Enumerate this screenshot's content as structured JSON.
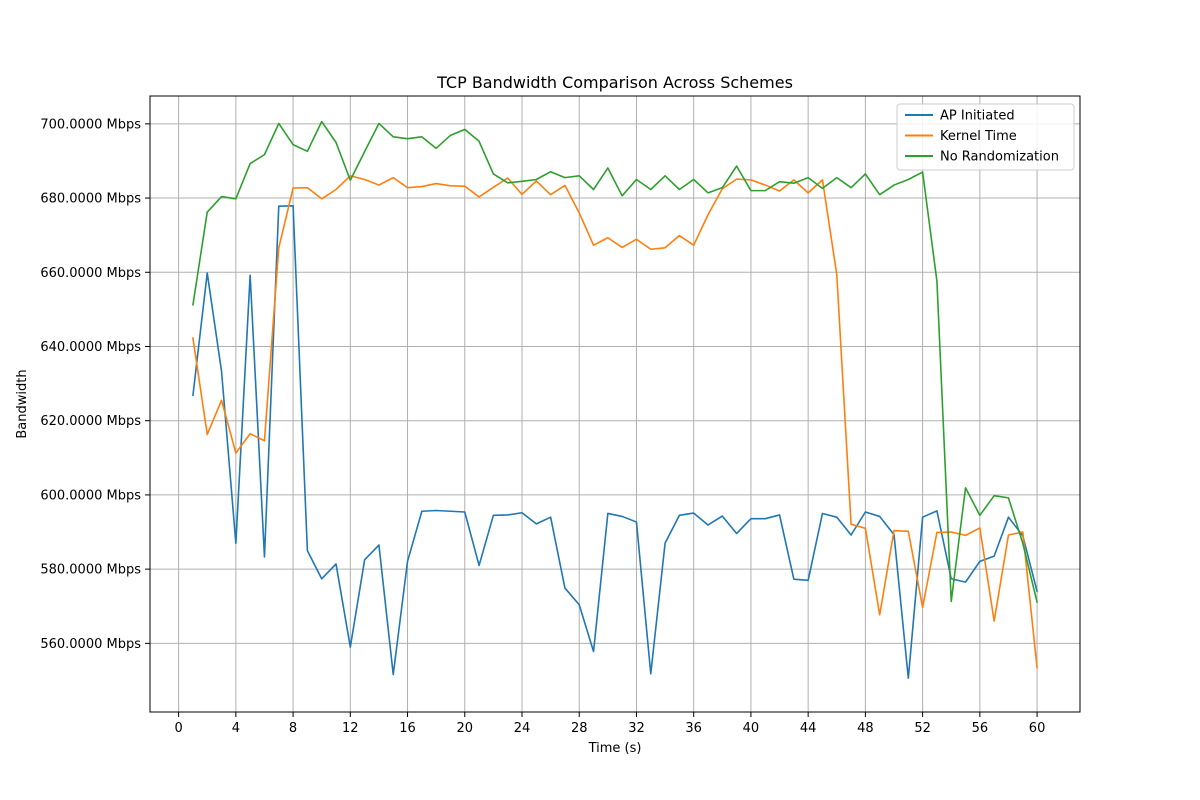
{
  "chart_data": {
    "type": "line",
    "title": "TCP Bandwidth Comparison Across Schemes",
    "xlabel": "Time (s)",
    "ylabel": "Bandwidth",
    "xlim": [
      -2,
      63
    ],
    "ylim": [
      541.5,
      707.5
    ],
    "xticks": [
      0,
      4,
      8,
      12,
      16,
      20,
      24,
      28,
      32,
      36,
      40,
      44,
      48,
      52,
      56,
      60
    ],
    "yticks": [
      560,
      580,
      600,
      620,
      640,
      660,
      680,
      700
    ],
    "ytick_labels": [
      "560.0000 Mbps",
      "580.0000 Mbps",
      "600.0000 Mbps",
      "620.0000 Mbps",
      "640.0000 Mbps",
      "660.0000 Mbps",
      "680.0000 Mbps",
      "700.0000 Mbps"
    ],
    "grid": true,
    "legend_position": "top-right",
    "x": [
      1,
      2,
      3,
      4,
      5,
      6,
      7,
      8,
      9,
      10,
      11,
      12,
      13,
      14,
      15,
      16,
      17,
      18,
      19,
      20,
      21,
      22,
      23,
      24,
      25,
      26,
      27,
      28,
      29,
      30,
      31,
      32,
      33,
      34,
      35,
      36,
      37,
      38,
      39,
      40,
      41,
      42,
      43,
      44,
      45,
      46,
      47,
      48,
      49,
      50,
      51,
      52,
      53,
      54,
      55,
      56,
      57,
      58,
      59,
      60
    ],
    "series": [
      {
        "name": "AP Initiated",
        "color": "#1f77b4",
        "values": [
          626.8,
          659.8,
          633.3,
          587.0,
          659.2,
          583.3,
          677.8,
          677.9,
          585.0,
          577.4,
          581.4,
          559.0,
          582.5,
          586.5,
          551.6,
          582.1,
          595.6,
          595.8,
          595.6,
          595.4,
          581.0,
          594.5,
          594.6,
          595.2,
          592.2,
          594.0,
          574.9,
          570.4,
          557.8,
          595.0,
          594.2,
          592.7,
          551.8,
          587.0,
          594.5,
          595.1,
          591.9,
          594.3,
          589.6,
          593.6,
          593.6,
          594.6,
          577.3,
          577.0,
          595.0,
          594.0,
          589.2,
          595.4,
          594.2,
          589.3,
          550.6,
          594.0,
          595.7,
          577.4,
          576.5,
          582.1,
          583.5,
          594.0,
          589.0,
          574.0
        ]
      },
      {
        "name": "Kernel Time",
        "color": "#ff7f0e",
        "values": [
          642.3,
          616.3,
          625.5,
          611.3,
          616.5,
          614.6,
          666.6,
          682.7,
          682.8,
          679.8,
          682.3,
          686.0,
          685.0,
          683.5,
          685.5,
          682.8,
          683.1,
          683.9,
          683.3,
          683.2,
          680.3,
          682.9,
          685.4,
          681.0,
          684.6,
          680.9,
          683.4,
          676.0,
          667.3,
          669.3,
          666.7,
          668.9,
          666.2,
          666.6,
          669.9,
          667.3,
          675.5,
          682.5,
          685.1,
          684.9,
          683.5,
          681.9,
          684.9,
          681.4,
          684.9,
          659.4,
          592.1,
          591.0,
          567.7,
          590.4,
          590.2,
          569.7,
          589.9,
          590.0,
          589.1,
          591.1,
          566.0,
          589.2,
          590.0,
          553.4
        ]
      },
      {
        "name": "No Randomization",
        "color": "#2ca02c",
        "values": [
          651.2,
          676.2,
          680.4,
          679.8,
          689.3,
          691.7,
          700.1,
          694.4,
          692.6,
          700.6,
          695.0,
          684.8,
          692.5,
          700.1,
          696.5,
          696.0,
          696.5,
          693.4,
          696.9,
          698.5,
          695.3,
          686.5,
          684.1,
          684.5,
          685.0,
          687.1,
          685.5,
          686.0,
          682.3,
          688.1,
          680.6,
          685.0,
          682.3,
          686.0,
          682.3,
          685.0,
          681.4,
          682.8,
          688.6,
          682.0,
          682.0,
          684.4,
          684.0,
          685.5,
          682.6,
          685.5,
          682.8,
          686.5,
          680.9,
          683.5,
          685.0,
          687.0,
          657.6,
          571.3,
          601.9,
          594.5,
          599.8,
          599.2,
          587.0,
          571.1
        ]
      }
    ]
  }
}
